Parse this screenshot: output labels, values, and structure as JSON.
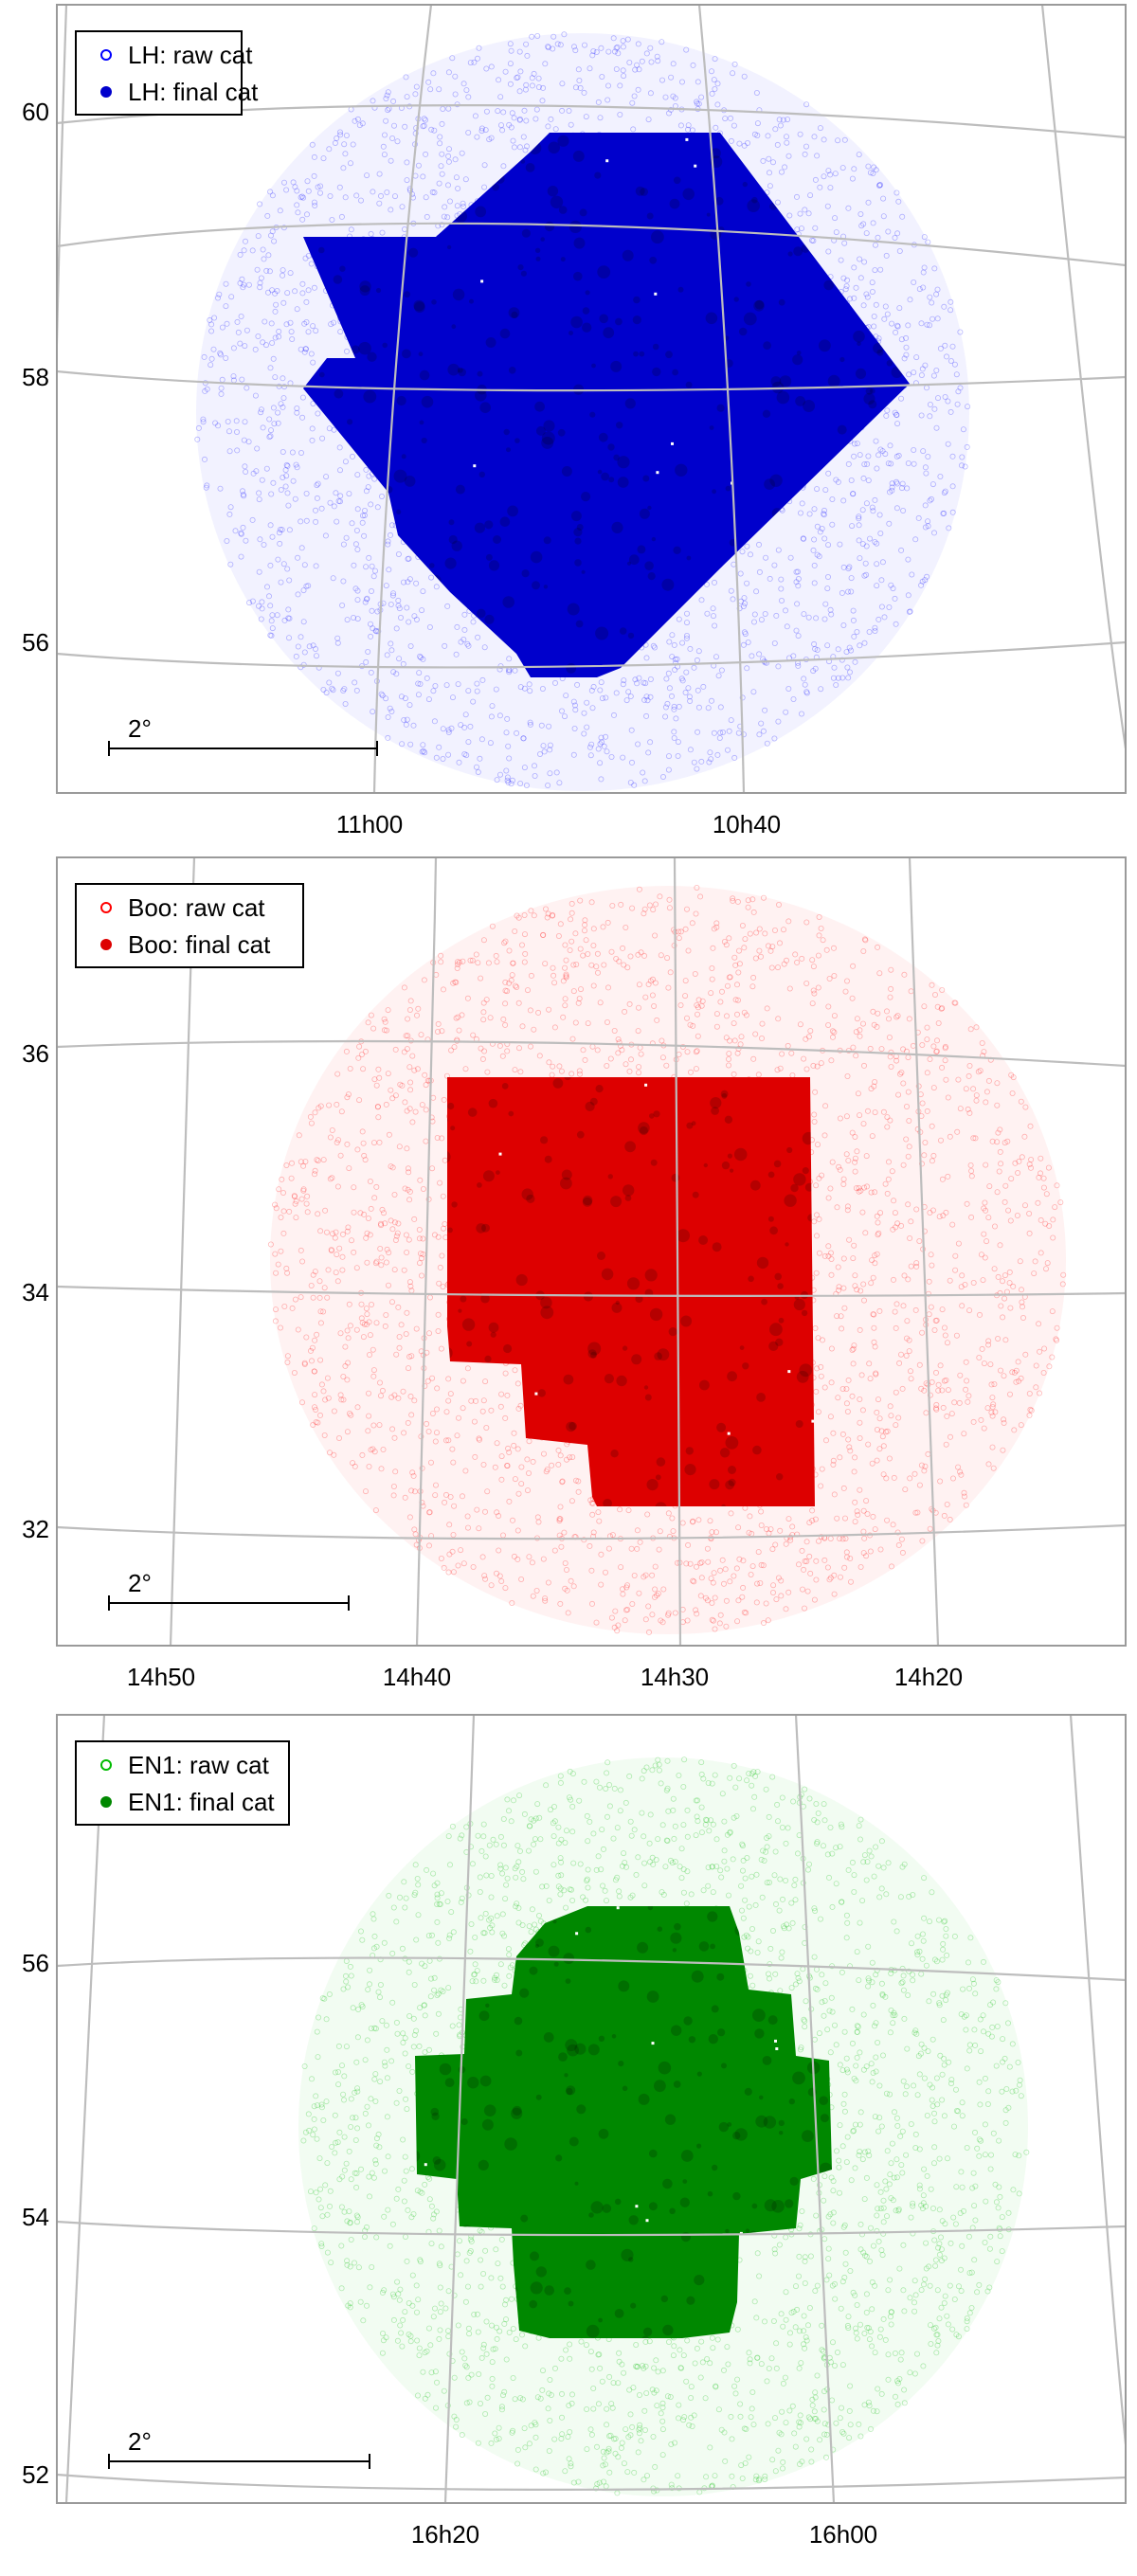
{
  "chart_data": [
    {
      "type": "scatter",
      "field": "LH",
      "title": "",
      "xlabel": "",
      "ylabel": "",
      "x_ticks": [
        "11h00",
        "10h40"
      ],
      "y_ticks": [
        "60",
        "58",
        "56"
      ],
      "scale_bar_label": "2°",
      "grid": true,
      "legend_position": "top-left",
      "series": [
        {
          "name": "LH: raw cat",
          "marker": "open-circle",
          "color": "#0000ff",
          "region": "circular, centred near RA 10h50, Dec 57.9, radius about 2.7°"
        },
        {
          "name": "LH: final cat",
          "marker": "filled-circle",
          "color": "#0000cc",
          "region": "tilted square coverage, Dec about 55.7 to 59.8"
        }
      ]
    },
    {
      "type": "scatter",
      "field": "Boo",
      "title": "",
      "xlabel": "",
      "ylabel": "",
      "x_ticks": [
        "14h50",
        "14h40",
        "14h30",
        "14h20"
      ],
      "y_ticks": [
        "36",
        "34",
        "32"
      ],
      "scale_bar_label": "2°",
      "grid": true,
      "legend_position": "top-left",
      "series": [
        {
          "name": "Boo: raw cat",
          "marker": "open-circle",
          "color": "#ff0000",
          "region": "circular, centred near RA 14h32, Dec 34.4, radius about 3.0°"
        },
        {
          "name": "Boo: final cat",
          "marker": "filled-circle",
          "color": "#dd0000",
          "region": "rectangular coverage, Dec about 32.3 to 35.8, stepped lower-left corner"
        }
      ]
    },
    {
      "type": "scatter",
      "field": "EN1",
      "title": "",
      "xlabel": "",
      "ylabel": "",
      "x_ticks": [
        "16h20",
        "16h00"
      ],
      "y_ticks": [
        "56",
        "54",
        "52"
      ],
      "scale_bar_label": "2°",
      "grid": true,
      "legend_position": "top-left",
      "series": [
        {
          "name": "EN1: raw cat",
          "marker": "open-circle",
          "color": "#00bb00",
          "region": "circular, centred near RA 16h11, Dec 54.9, radius about 2.7°"
        },
        {
          "name": "EN1: final cat",
          "marker": "filled-circle",
          "color": "#008800",
          "region": "cross-shaped coverage, Dec about 53.2 to 56.3"
        }
      ]
    }
  ]
}
